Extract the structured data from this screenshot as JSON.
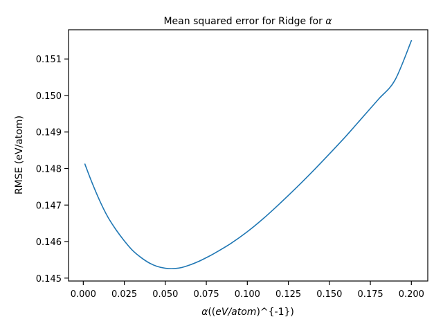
{
  "chart_data": {
    "type": "line",
    "title": {
      "prefix": "Mean squared error for Ridge for ",
      "symbol": "α"
    },
    "xlabel": {
      "symbol": "α",
      "open": "((",
      "italic_part": "eV/atom",
      "close": ")^{-1})"
    },
    "ylabel": "RMSE (eV/atom)",
    "xlim": [
      -0.009,
      0.21
    ],
    "ylim": [
      0.14492,
      0.1518
    ],
    "x_ticks": [
      0.0,
      0.025,
      0.05,
      0.075,
      0.1,
      0.125,
      0.15,
      0.175,
      0.2
    ],
    "x_tick_labels": [
      "0.000",
      "0.025",
      "0.050",
      "0.075",
      "0.100",
      "0.125",
      "0.150",
      "0.175",
      "0.200"
    ],
    "y_ticks": [
      0.145,
      0.146,
      0.147,
      0.148,
      0.149,
      0.15,
      0.151
    ],
    "y_tick_labels": [
      "0.145",
      "0.146",
      "0.147",
      "0.148",
      "0.149",
      "0.150",
      "0.151"
    ],
    "grid": false,
    "legend": "none",
    "series": [
      {
        "color": "#1f77b4",
        "x": [
          0.001,
          0.005,
          0.01,
          0.015,
          0.02,
          0.025,
          0.03,
          0.035,
          0.04,
          0.045,
          0.05,
          0.055,
          0.06,
          0.065,
          0.07,
          0.075,
          0.08,
          0.09,
          0.1,
          0.11,
          0.12,
          0.13,
          0.14,
          0.15,
          0.16,
          0.17,
          0.18,
          0.19,
          0.2
        ],
        "y": [
          0.14812,
          0.14765,
          0.14712,
          0.14667,
          0.14632,
          0.14602,
          0.14576,
          0.14557,
          0.14542,
          0.14532,
          0.14527,
          0.14526,
          0.14529,
          0.14536,
          0.14545,
          0.14556,
          0.14568,
          0.14595,
          0.14627,
          0.14664,
          0.14705,
          0.14748,
          0.14793,
          0.1484,
          0.14888,
          0.14939,
          0.1499,
          0.15042,
          0.1515
        ]
      }
    ]
  }
}
